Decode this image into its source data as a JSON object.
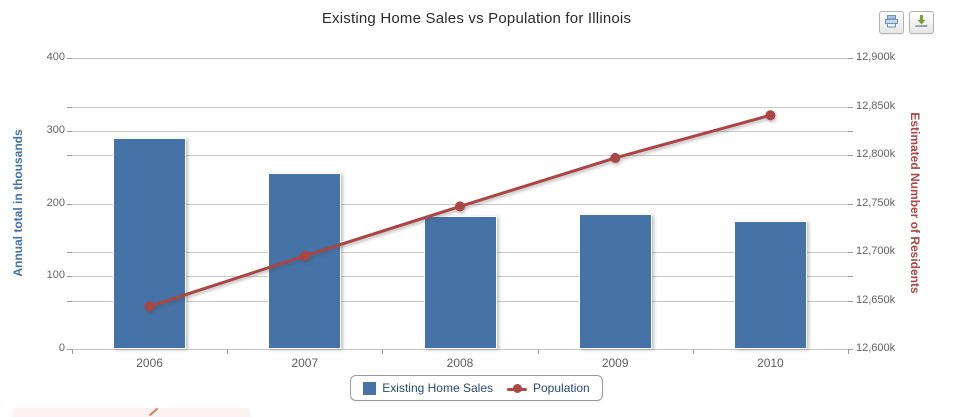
{
  "header": {
    "title": "Existing Home Sales vs Population for Illinois",
    "print_label": "print-chart",
    "export_label": "export-chart"
  },
  "chart_data": {
    "type": "bar",
    "title": "Existing Home Sales vs Population for Illinois",
    "categories": [
      "2006",
      "2007",
      "2008",
      "2009",
      "2010"
    ],
    "series": [
      {
        "name": "Existing Home Sales",
        "type": "bar",
        "axis": "left",
        "color": "#4572A7",
        "values": [
          290,
          242,
          183,
          185,
          176
        ]
      },
      {
        "name": "Population",
        "type": "line",
        "axis": "right",
        "color": "#AA4643",
        "values": [
          12644,
          12696,
          12747,
          12797,
          12841
        ]
      }
    ],
    "left_axis": {
      "title": "Annual total in thousands",
      "min": 0,
      "max": 400,
      "tick_step": 100,
      "tick_labels": [
        "0",
        "100",
        "200",
        "300",
        "400"
      ],
      "color": "#4572A7"
    },
    "right_axis": {
      "title": "Estimated Number of Residents",
      "min": 12600,
      "max": 12900,
      "tick_step": 50,
      "tick_labels": [
        "12,600k",
        "12,650k",
        "12,700k",
        "12,750k",
        "12,800k",
        "12,850k",
        "12,900k"
      ],
      "color": "#AA4643"
    },
    "grid": true,
    "legend_position": "bottom",
    "legend": [
      {
        "label": "Existing Home Sales",
        "marker": "square",
        "color": "#4572A7"
      },
      {
        "label": "Population",
        "marker": "line-dot",
        "color": "#AA4643"
      }
    ]
  }
}
